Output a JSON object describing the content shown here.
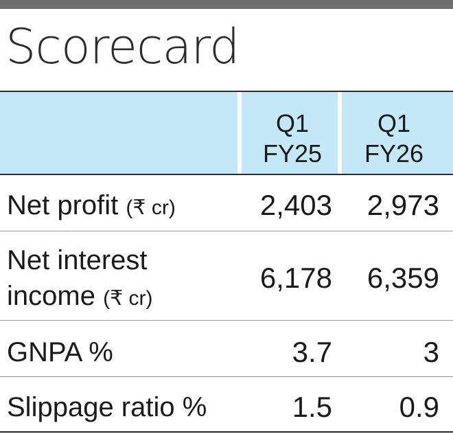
{
  "title": "Scorecard",
  "columns": [
    {
      "line1": "Q1",
      "line2": "FY25"
    },
    {
      "line1": "Q1",
      "line2": "FY26"
    }
  ],
  "rows": [
    {
      "label": "Net profit",
      "label_line2": "",
      "unit": "(₹ cr)",
      "values": [
        "2,403",
        "2,973"
      ]
    },
    {
      "label": "Net interest",
      "label_line2": "income",
      "unit": "(₹ cr)",
      "values": [
        "6,178",
        "6,359"
      ]
    },
    {
      "label": "GNPA %",
      "label_line2": "",
      "unit": "",
      "values": [
        "3.7",
        "3"
      ]
    },
    {
      "label": "Slippage ratio %",
      "label_line2": "",
      "unit": "",
      "values": [
        "1.5",
        "0.9"
      ]
    }
  ],
  "colors": {
    "header_band": "#c4e8f7",
    "top_rule": "#6e6e70",
    "text": "#1a1a1a"
  }
}
